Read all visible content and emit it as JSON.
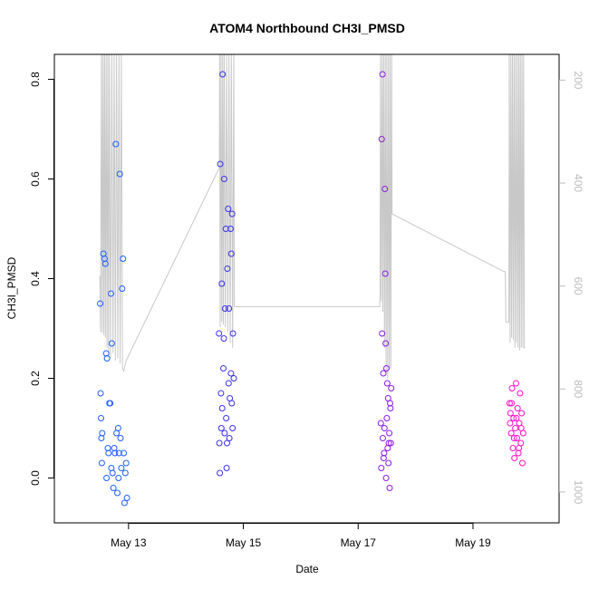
{
  "chart_data": {
    "type": "scatter",
    "title": "ATOM4 Northbound CH3I_PMSD",
    "xlabel": "Date",
    "ylabel": "CH3I_PMSD",
    "xlim": [
      "2023-05-11T17:00",
      "2023-05-20T12:00"
    ],
    "ylim": [
      -0.09,
      0.85
    ],
    "x_ticks": [
      {
        "value": "2023-05-13T00:00",
        "label": "May 13"
      },
      {
        "value": "2023-05-15T00:00",
        "label": "May 15"
      },
      {
        "value": "2023-05-17T00:00",
        "label": "May 17"
      },
      {
        "value": "2023-05-19T00:00",
        "label": "May 19"
      }
    ],
    "y_ticks": [
      0.0,
      0.2,
      0.4,
      0.6,
      0.8
    ],
    "y_tick_labels": [
      "0.0",
      "0.2",
      "0.4",
      "0.6",
      "0.8"
    ],
    "secondary_axis": {
      "reversed": true,
      "range": [
        150,
        1060
      ],
      "ticks": [
        200,
        400,
        600,
        800,
        1000
      ],
      "tick_labels": [
        "200",
        "400",
        "600",
        "800",
        "1000"
      ],
      "color": "#bdbdbd"
    },
    "point_colors": [
      "#1f5fff",
      "#3a32e8",
      "#8a1ce8",
      "#ff10c8"
    ],
    "line_color": "#c8c8c8",
    "series": [
      {
        "type": "scatter",
        "color": "#1f5fff",
        "points": [
          [
            "2023-05-12T12:10",
            0.35
          ],
          [
            "2023-05-12T12:20",
            0.17
          ],
          [
            "2023-05-12T12:30",
            0.12
          ],
          [
            "2023-05-12T12:40",
            0.08
          ],
          [
            "2023-05-12T12:50",
            0.03
          ],
          [
            "2023-05-12T13:00",
            0.09
          ],
          [
            "2023-05-12T13:30",
            0.45
          ],
          [
            "2023-05-12T14:00",
            0.44
          ],
          [
            "2023-05-12T14:20",
            0.43
          ],
          [
            "2023-05-12T14:40",
            0.25
          ],
          [
            "2023-05-12T15:00",
            0.24
          ],
          [
            "2023-05-12T15:20",
            0.06
          ],
          [
            "2023-05-12T15:40",
            0.05
          ],
          [
            "2023-05-12T16:00",
            0.15
          ],
          [
            "2023-05-12T16:20",
            0.15
          ],
          [
            "2023-05-12T16:40",
            0.37
          ],
          [
            "2023-05-12T17:00",
            0.27
          ],
          [
            "2023-05-12T17:20",
            0.01
          ],
          [
            "2023-05-12T17:40",
            -0.02
          ],
          [
            "2023-05-12T18:00",
            0.06
          ],
          [
            "2023-05-12T18:20",
            0.05
          ],
          [
            "2023-05-12T18:40",
            0.67
          ],
          [
            "2023-05-12T19:00",
            0.09
          ],
          [
            "2023-05-12T19:20",
            -0.03
          ],
          [
            "2023-05-12T19:40",
            0.1
          ],
          [
            "2023-05-12T20:00",
            0.05
          ],
          [
            "2023-05-12T20:20",
            0.61
          ],
          [
            "2023-05-12T20:40",
            0.08
          ],
          [
            "2023-05-12T21:00",
            0.02
          ],
          [
            "2023-05-12T21:20",
            0.38
          ],
          [
            "2023-05-12T21:40",
            0.44
          ],
          [
            "2023-05-12T22:00",
            0.05
          ],
          [
            "2023-05-12T22:20",
            -0.05
          ],
          [
            "2023-05-12T22:40",
            0.01
          ],
          [
            "2023-05-12T23:00",
            0.03
          ],
          [
            "2023-05-12T23:20",
            -0.04
          ],
          [
            "2023-05-12T14:50",
            0.0
          ],
          [
            "2023-05-12T16:50",
            0.02
          ],
          [
            "2023-05-12T19:50",
            0.0
          ]
        ]
      },
      {
        "type": "scatter",
        "color": "#3a32e8",
        "points": [
          [
            "2023-05-14T13:50",
            0.29
          ],
          [
            "2023-05-14T14:00",
            0.07
          ],
          [
            "2023-05-14T14:10",
            0.01
          ],
          [
            "2023-05-14T14:20",
            0.63
          ],
          [
            "2023-05-14T14:40",
            0.17
          ],
          [
            "2023-05-14T15:00",
            0.39
          ],
          [
            "2023-05-14T15:20",
            0.81
          ],
          [
            "2023-05-14T15:40",
            0.22
          ],
          [
            "2023-05-14T16:00",
            0.6
          ],
          [
            "2023-05-14T16:20",
            0.34
          ],
          [
            "2023-05-14T16:40",
            0.5
          ],
          [
            "2023-05-14T17:00",
            0.02
          ],
          [
            "2023-05-14T17:20",
            0.42
          ],
          [
            "2023-05-14T17:40",
            0.54
          ],
          [
            "2023-05-14T18:00",
            0.34
          ],
          [
            "2023-05-14T18:20",
            0.16
          ],
          [
            "2023-05-14T18:40",
            0.5
          ],
          [
            "2023-05-14T19:00",
            0.45
          ],
          [
            "2023-05-14T19:20",
            0.53
          ],
          [
            "2023-05-14T19:40",
            0.29
          ],
          [
            "2023-05-14T20:00",
            0.2
          ],
          [
            "2023-05-14T14:50",
            0.1
          ],
          [
            "2023-05-14T15:10",
            0.14
          ],
          [
            "2023-05-14T15:50",
            0.28
          ],
          [
            "2023-05-14T16:10",
            0.09
          ],
          [
            "2023-05-14T16:50",
            0.12
          ],
          [
            "2023-05-14T17:10",
            0.07
          ],
          [
            "2023-05-14T17:50",
            0.19
          ],
          [
            "2023-05-14T18:10",
            0.08
          ],
          [
            "2023-05-14T18:50",
            0.21
          ],
          [
            "2023-05-14T19:10",
            0.15
          ],
          [
            "2023-05-14T19:30",
            0.1
          ]
        ]
      },
      {
        "type": "scatter",
        "color": "#8a1ce8",
        "points": [
          [
            "2023-05-17T09:30",
            0.11
          ],
          [
            "2023-05-17T09:50",
            0.68
          ],
          [
            "2023-05-17T10:00",
            0.29
          ],
          [
            "2023-05-17T10:10",
            0.81
          ],
          [
            "2023-05-17T10:30",
            0.21
          ],
          [
            "2023-05-17T10:50",
            0.05
          ],
          [
            "2023-05-17T11:10",
            0.58
          ],
          [
            "2023-05-17T11:20",
            0.41
          ],
          [
            "2023-05-17T11:30",
            0.27
          ],
          [
            "2023-05-17T11:50",
            0.22
          ],
          [
            "2023-05-17T12:10",
            0.19
          ],
          [
            "2023-05-17T12:30",
            0.16
          ],
          [
            "2023-05-17T12:50",
            0.07
          ],
          [
            "2023-05-17T13:10",
            -0.02
          ],
          [
            "2023-05-17T13:30",
            0.14
          ],
          [
            "2023-05-17T13:50",
            0.18
          ],
          [
            "2023-05-17T09:40",
            0.02
          ],
          [
            "2023-05-17T10:20",
            0.08
          ],
          [
            "2023-05-17T10:40",
            0.04
          ],
          [
            "2023-05-17T11:00",
            0.1
          ],
          [
            "2023-05-17T11:40",
            0.0
          ],
          [
            "2023-05-17T12:00",
            0.12
          ],
          [
            "2023-05-17T12:20",
            0.06
          ],
          [
            "2023-05-17T12:40",
            0.03
          ],
          [
            "2023-05-17T13:00",
            0.09
          ],
          [
            "2023-05-17T13:20",
            0.15
          ],
          [
            "2023-05-17T13:40",
            0.07
          ]
        ]
      },
      {
        "type": "scatter",
        "color": "#ff10c8",
        "points": [
          [
            "2023-05-19T15:20",
            0.15
          ],
          [
            "2023-05-19T15:40",
            0.13
          ],
          [
            "2023-05-19T16:00",
            0.09
          ],
          [
            "2023-05-19T16:20",
            0.18
          ],
          [
            "2023-05-19T16:40",
            0.06
          ],
          [
            "2023-05-19T17:00",
            0.12
          ],
          [
            "2023-05-19T17:20",
            0.04
          ],
          [
            "2023-05-19T17:40",
            0.1
          ],
          [
            "2023-05-19T18:00",
            0.19
          ],
          [
            "2023-05-19T18:20",
            0.08
          ],
          [
            "2023-05-19T18:40",
            0.14
          ],
          [
            "2023-05-19T19:00",
            0.05
          ],
          [
            "2023-05-19T19:20",
            0.11
          ],
          [
            "2023-05-19T19:40",
            0.17
          ],
          [
            "2023-05-19T20:00",
            0.07
          ],
          [
            "2023-05-19T20:20",
            0.13
          ],
          [
            "2023-05-19T20:40",
            0.03
          ],
          [
            "2023-05-19T21:00",
            0.09
          ],
          [
            "2023-05-19T15:30",
            0.11
          ],
          [
            "2023-05-19T16:10",
            0.15
          ],
          [
            "2023-05-19T17:10",
            0.08
          ],
          [
            "2023-05-19T18:10",
            0.12
          ],
          [
            "2023-05-19T19:10",
            0.06
          ],
          [
            "2023-05-19T20:10",
            0.1
          ]
        ]
      },
      {
        "type": "line",
        "color": "#c8c8c8",
        "axis": "secondary",
        "points": [
          [
            "2023-05-12T12:00",
            580
          ],
          [
            "2023-05-12T12:20",
            690
          ],
          [
            "2023-05-12T12:40",
            150
          ],
          [
            "2023-05-12T13:00",
            690
          ],
          [
            "2023-05-12T13:20",
            150
          ],
          [
            "2023-05-12T13:40",
            695
          ],
          [
            "2023-05-12T14:00",
            150
          ],
          [
            "2023-05-12T14:20",
            700
          ],
          [
            "2023-05-12T14:40",
            150
          ],
          [
            "2023-05-12T15:00",
            720
          ],
          [
            "2023-05-12T15:20",
            150
          ],
          [
            "2023-05-12T15:40",
            730
          ],
          [
            "2023-05-12T16:00",
            150
          ],
          [
            "2023-05-12T16:30",
            740
          ],
          [
            "2023-05-12T17:00",
            150
          ],
          [
            "2023-05-12T17:30",
            730
          ],
          [
            "2023-05-12T18:00",
            150
          ],
          [
            "2023-05-12T18:30",
            745
          ],
          [
            "2023-05-12T19:00",
            150
          ],
          [
            "2023-05-12T19:30",
            740
          ],
          [
            "2023-05-12T20:00",
            150
          ],
          [
            "2023-05-12T20:30",
            750
          ],
          [
            "2023-05-12T21:00",
            150
          ],
          [
            "2023-05-12T21:30",
            760
          ],
          [
            "2023-05-12T22:00",
            765
          ],
          [
            "2023-05-12T23:00",
            745
          ],
          [
            "2023-05-14T14:00",
            370
          ],
          [
            "2023-05-14T14:05",
            150
          ],
          [
            "2023-05-14T14:20",
            680
          ],
          [
            "2023-05-14T14:40",
            150
          ],
          [
            "2023-05-14T15:00",
            670
          ],
          [
            "2023-05-14T15:20",
            150
          ],
          [
            "2023-05-14T15:40",
            675
          ],
          [
            "2023-05-14T16:00",
            150
          ],
          [
            "2023-05-14T16:30",
            680
          ],
          [
            "2023-05-14T17:00",
            150
          ],
          [
            "2023-05-14T17:30",
            690
          ],
          [
            "2023-05-14T18:00",
            150
          ],
          [
            "2023-05-14T18:30",
            710
          ],
          [
            "2023-05-14T19:00",
            150
          ],
          [
            "2023-05-14T19:30",
            720
          ],
          [
            "2023-05-14T20:00",
            150
          ],
          [
            "2023-05-14T20:15",
            640
          ],
          [
            "2023-05-17T09:00",
            640
          ],
          [
            "2023-05-17T09:10",
            610
          ],
          [
            "2023-05-17T09:20",
            150
          ],
          [
            "2023-05-17T09:40",
            630
          ],
          [
            "2023-05-17T10:00",
            150
          ],
          [
            "2023-05-17T10:20",
            650
          ],
          [
            "2023-05-17T10:40",
            150
          ],
          [
            "2023-05-17T11:00",
            720
          ],
          [
            "2023-05-17T11:20",
            150
          ],
          [
            "2023-05-17T11:40",
            770
          ],
          [
            "2023-05-17T12:00",
            150
          ],
          [
            "2023-05-17T12:20",
            780
          ],
          [
            "2023-05-17T12:40",
            150
          ],
          [
            "2023-05-17T13:00",
            760
          ],
          [
            "2023-05-17T13:20",
            150
          ],
          [
            "2023-05-17T13:40",
            760
          ],
          [
            "2023-05-17T14:00",
            150
          ],
          [
            "2023-05-17T14:10",
            460
          ],
          [
            "2023-05-19T13:00",
            572
          ],
          [
            "2023-05-19T13:30",
            572
          ],
          [
            "2023-05-19T13:45",
            670
          ],
          [
            "2023-05-19T15:00",
            670
          ],
          [
            "2023-05-19T15:10",
            150
          ],
          [
            "2023-05-19T15:30",
            710
          ],
          [
            "2023-05-19T15:50",
            150
          ],
          [
            "2023-05-19T16:10",
            700
          ],
          [
            "2023-05-19T16:30",
            150
          ],
          [
            "2023-05-19T16:50",
            705
          ],
          [
            "2023-05-19T17:10",
            150
          ],
          [
            "2023-05-19T17:30",
            720
          ],
          [
            "2023-05-19T17:50",
            150
          ],
          [
            "2023-05-19T18:10",
            710
          ],
          [
            "2023-05-19T18:30",
            150
          ],
          [
            "2023-05-19T18:50",
            720
          ],
          [
            "2023-05-19T19:10",
            150
          ],
          [
            "2023-05-19T19:30",
            725
          ],
          [
            "2023-05-19T19:50",
            150
          ],
          [
            "2023-05-19T20:10",
            720
          ],
          [
            "2023-05-19T20:30",
            150
          ],
          [
            "2023-05-19T20:50",
            720
          ],
          [
            "2023-05-19T21:10",
            150
          ],
          [
            "2023-05-19T21:30",
            722
          ]
        ]
      }
    ]
  }
}
